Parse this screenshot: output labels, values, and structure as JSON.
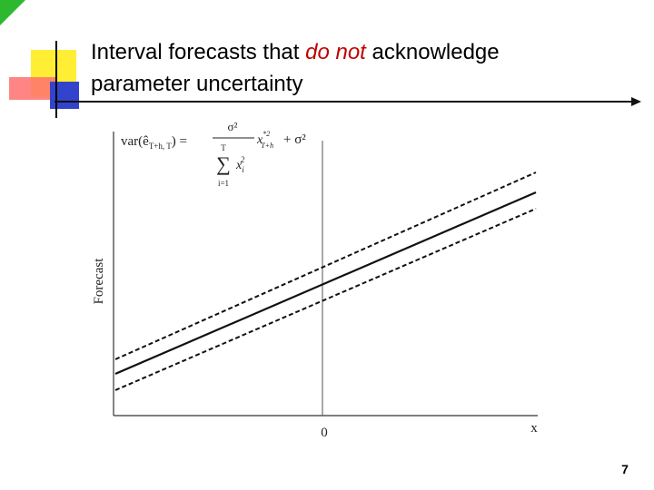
{
  "header": {
    "title_before": "Interval forecasts that",
    "title_emphasis": "do not",
    "title_after": "acknowledge",
    "title_line2": "parameter uncertainty"
  },
  "figure": {
    "y_label": "Forecast",
    "x_label": "x",
    "x_origin_label": "0",
    "formula": {
      "lhs": "var(ê",
      "lhs_sub": "T+h, T",
      "lhs_close": ") =",
      "numerator": "σ²",
      "sum_top": "T",
      "sum_sign": "∑",
      "sum_bottom": "i=1",
      "term": "x",
      "term_sub": "i",
      "term_sup": "2",
      "factor": "x",
      "factor_sup": "*2",
      "factor_sub": "T+h",
      "tail": "+ σ²"
    }
  },
  "page_number": "7"
}
